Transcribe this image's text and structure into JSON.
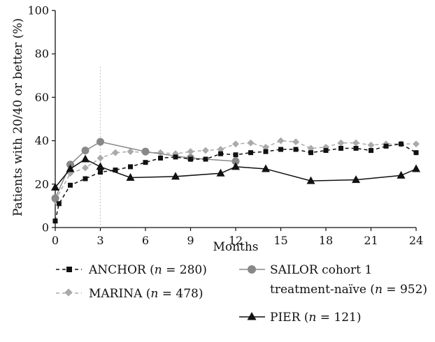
{
  "chart_data": {
    "type": "line",
    "title": "",
    "xlabel": "Months",
    "ylabel": "Patients with 20/40 or better (%)",
    "xlim": [
      0,
      24
    ],
    "ylim": [
      0,
      100
    ],
    "xticks": [
      0,
      3,
      6,
      9,
      12,
      15,
      18,
      21,
      24
    ],
    "yticks": [
      0,
      20,
      40,
      60,
      80,
      100
    ],
    "grid": false,
    "legend_position": "bottom",
    "reference_line": {
      "x": 3,
      "style": "dotted"
    },
    "series": [
      {
        "name": "ANCHOR",
        "n_label": "n",
        "n_value": "= 280)",
        "color": "#111111",
        "line_style": "dashed",
        "marker": "square",
        "x": [
          0,
          0.25,
          1,
          2,
          3,
          4,
          5,
          6,
          7,
          8,
          9,
          10,
          11,
          12,
          13,
          14,
          15,
          16,
          17,
          18,
          19,
          20,
          21,
          22,
          23,
          24
        ],
        "y": [
          3,
          11,
          19.5,
          22.5,
          25.5,
          26.5,
          28,
          30,
          32,
          32.5,
          31.5,
          31.5,
          34,
          33.5,
          34.5,
          35,
          36,
          36,
          34.5,
          35.5,
          36.5,
          36.5,
          35.5,
          37.5,
          38.5,
          34.5
        ]
      },
      {
        "name": "MARINA",
        "n_label": "n",
        "n_value": "= 478)",
        "color": "#aaaaaa",
        "line_style": "dashed",
        "marker": "diamond",
        "x": [
          0,
          1,
          2,
          3,
          4,
          5,
          6,
          7,
          8,
          9,
          10,
          11,
          12,
          13,
          14,
          15,
          16,
          17,
          18,
          19,
          20,
          21,
          22,
          23,
          24
        ],
        "y": [
          12.5,
          25,
          27.5,
          32,
          34.5,
          35,
          34.5,
          34.5,
          34,
          35,
          35.5,
          36,
          38.5,
          39,
          37,
          40,
          39.5,
          36.5,
          37,
          39,
          39,
          38,
          38.5,
          38.5,
          38.5
        ]
      },
      {
        "name": "SAILOR cohort 1",
        "name_line2": "treatment-naïve",
        "n_label": "n",
        "n_value": "= 952)",
        "color": "#888888",
        "line_style": "solid",
        "marker": "circle",
        "x": [
          0,
          1,
          2,
          3,
          6,
          9,
          12
        ],
        "y": [
          13.5,
          29,
          35.5,
          39.5,
          35,
          32,
          30.5
        ]
      },
      {
        "name": "PIER",
        "n_label": "n",
        "n_value": "= 121)",
        "color": "#111111",
        "line_style": "solid",
        "marker": "triangle",
        "x": [
          0,
          1,
          2,
          3,
          5,
          8,
          11,
          12,
          14,
          17,
          20,
          23,
          24
        ],
        "y": [
          18.5,
          27,
          31.5,
          28,
          23,
          23.5,
          25,
          28,
          27,
          21.5,
          22,
          24,
          27
        ]
      }
    ]
  }
}
